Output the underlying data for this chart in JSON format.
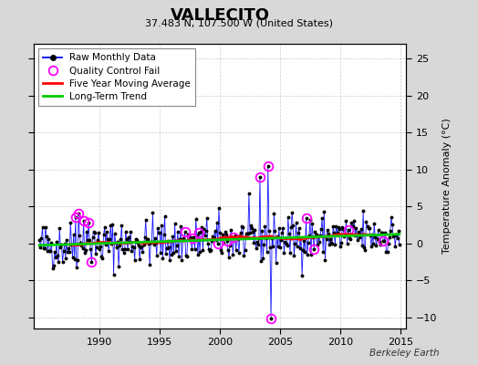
{
  "title": "VALLECITO",
  "subtitle": "37.483 N, 107.500 W (United States)",
  "ylabel": "Temperature Anomaly (°C)",
  "watermark": "Berkeley Earth",
  "xlim": [
    1984.5,
    2015.5
  ],
  "ylim": [
    -11.5,
    27
  ],
  "yticks_right": [
    -10,
    -5,
    0,
    5,
    10,
    15,
    20,
    25
  ],
  "xticks": [
    1990,
    1995,
    2000,
    2005,
    2010,
    2015
  ],
  "fig_bg_color": "#d8d8d8",
  "plot_bg_color": "#ffffff",
  "raw_color": "#0000ff",
  "raw_dot_color": "#000000",
  "qc_color": "#ff00ff",
  "moving_avg_color": "#ff0000",
  "trend_color": "#00cc00",
  "seed": 42
}
